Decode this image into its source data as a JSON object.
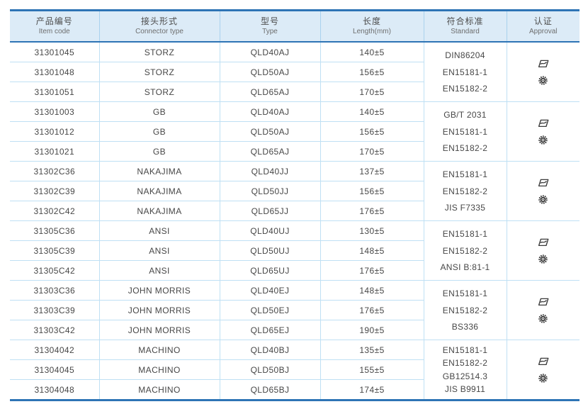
{
  "header": {
    "columns": [
      {
        "cn": "产品编号",
        "en": "Item code"
      },
      {
        "cn": "接头形式",
        "en": "Connector type"
      },
      {
        "cn": "型号",
        "en": "Type"
      },
      {
        "cn": "长度",
        "en": "Length(mm)"
      },
      {
        "cn": "符合标准",
        "en": "Standard"
      },
      {
        "cn": "认证",
        "en": "Approval"
      }
    ]
  },
  "approval_icons": [
    "swoosh-logo-icon",
    "gear-seal-icon"
  ],
  "table": {
    "groups": [
      {
        "rows": [
          {
            "code": "31301045",
            "connector": "STORZ",
            "type": "QLD40AJ",
            "length": "140±5"
          },
          {
            "code": "31301048",
            "connector": "STORZ",
            "type": "QLD50AJ",
            "length": "156±5"
          },
          {
            "code": "31301051",
            "connector": "STORZ",
            "type": "QLD65AJ",
            "length": "170±5"
          }
        ],
        "standards": [
          "DIN86204",
          "EN15181-1",
          "EN15182-2"
        ]
      },
      {
        "rows": [
          {
            "code": "31301003",
            "connector": "GB",
            "type": "QLD40AJ",
            "length": "140±5"
          },
          {
            "code": "31301012",
            "connector": "GB",
            "type": "QLD50AJ",
            "length": "156±5"
          },
          {
            "code": "31301021",
            "connector": "GB",
            "type": "QLD65AJ",
            "length": "170±5"
          }
        ],
        "standards": [
          "GB/T 2031",
          "EN15181-1",
          "EN15182-2"
        ]
      },
      {
        "rows": [
          {
            "code": "31302C36",
            "connector": "NAKAJIMA",
            "type": "QLD40JJ",
            "length": "137±5"
          },
          {
            "code": "31302C39",
            "connector": "NAKAJIMA",
            "type": "QLD50JJ",
            "length": "156±5"
          },
          {
            "code": "31302C42",
            "connector": "NAKAJIMA",
            "type": "QLD65JJ",
            "length": "176±5"
          }
        ],
        "standards": [
          "EN15181-1",
          "EN15182-2",
          "JIS F7335"
        ]
      },
      {
        "rows": [
          {
            "code": "31305C36",
            "connector": "ANSI",
            "type": "QLD40UJ",
            "length": "130±5"
          },
          {
            "code": "31305C39",
            "connector": "ANSI",
            "type": "QLD50UJ",
            "length": "148±5"
          },
          {
            "code": "31305C42",
            "connector": "ANSI",
            "type": "QLD65UJ",
            "length": "176±5"
          }
        ],
        "standards": [
          "EN15181-1",
          "EN15182-2",
          "ANSI B:81-1"
        ]
      },
      {
        "rows": [
          {
            "code": "31303C36",
            "connector": "JOHN MORRIS",
            "type": "QLD40EJ",
            "length": "148±5"
          },
          {
            "code": "31303C39",
            "connector": "JOHN MORRIS",
            "type": "QLD50EJ",
            "length": "176±5"
          },
          {
            "code": "31303C42",
            "connector": "JOHN MORRIS",
            "type": "QLD65EJ",
            "length": "190±5"
          }
        ],
        "standards": [
          "EN15181-1",
          "EN15182-2",
          "BS336"
        ]
      },
      {
        "rows": [
          {
            "code": "31304042",
            "connector": "MACHINO",
            "type": "QLD40BJ",
            "length": "135±5"
          },
          {
            "code": "31304045",
            "connector": "MACHINO",
            "type": "QLD50BJ",
            "length": "155±5"
          },
          {
            "code": "31304048",
            "connector": "MACHINO",
            "type": "QLD65BJ",
            "length": "174±5"
          }
        ],
        "standards": [
          "EN15181-1",
          "EN15182-2",
          "GB12514.3",
          "JIS B9911"
        ]
      }
    ]
  },
  "colors": {
    "accent_border": "#2e74b5",
    "header_bg": "#dcebf7",
    "grid_line": "#bfe0f4",
    "text": "#474747"
  }
}
